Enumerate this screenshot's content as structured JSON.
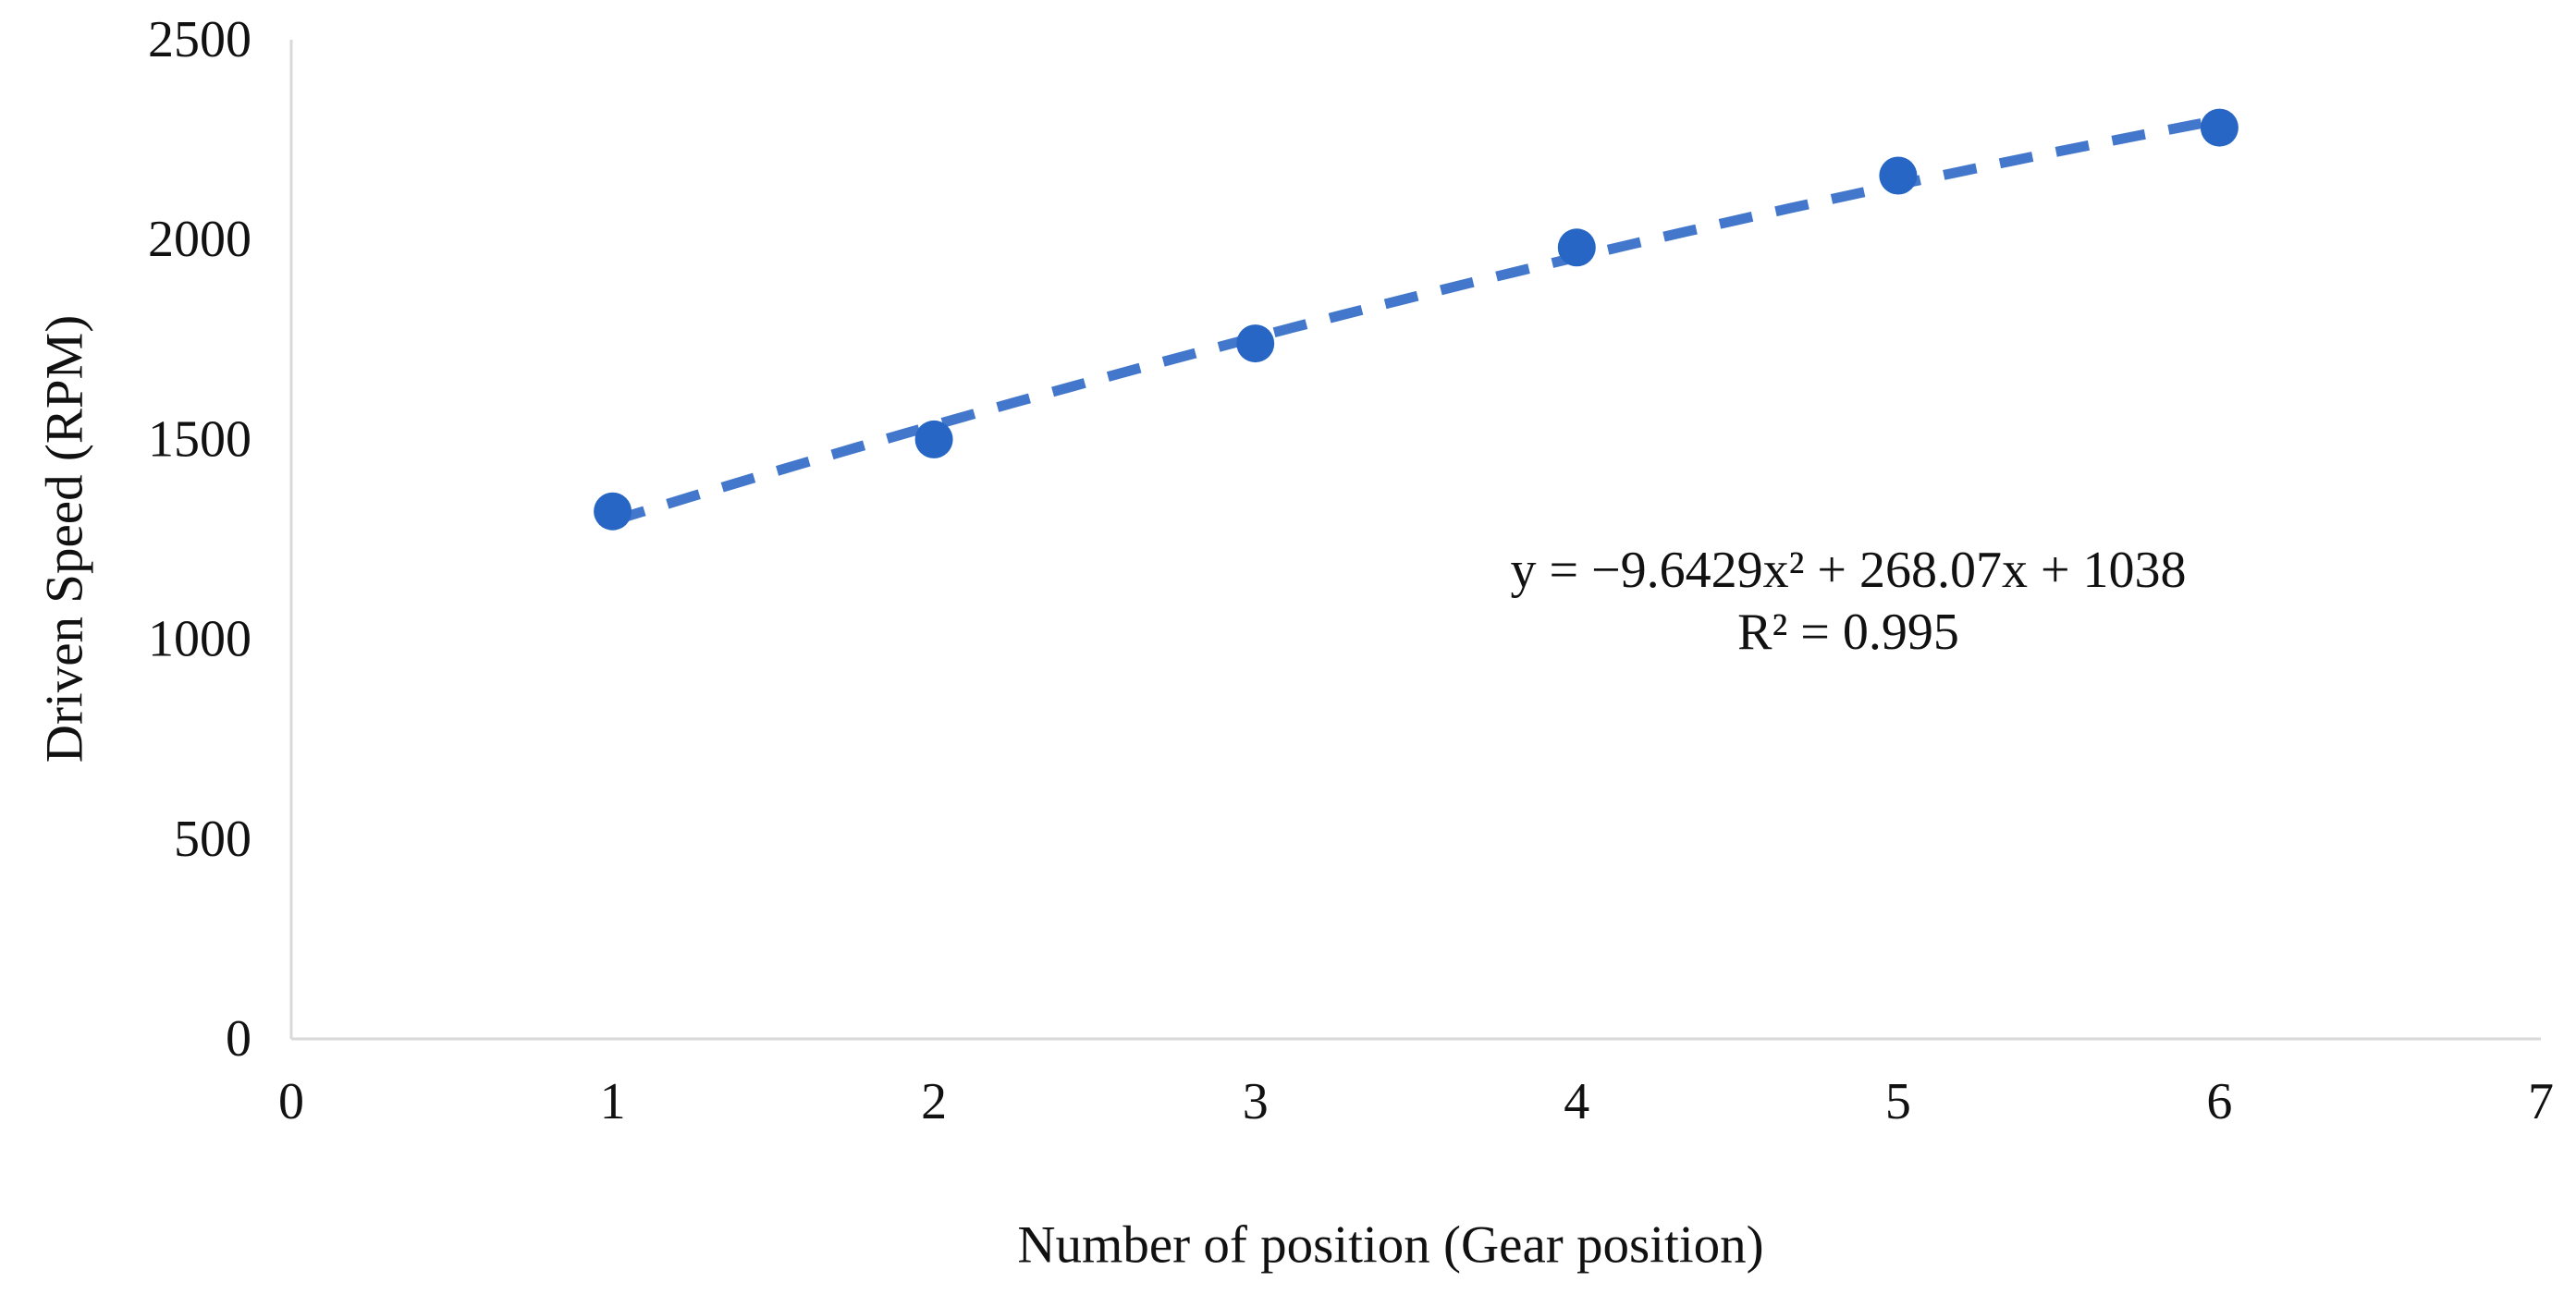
{
  "figure": {
    "background_color": "#ffffff",
    "title": ""
  },
  "chart_data": {
    "type": "scatter",
    "title": "",
    "xlabel": "Number of position (Gear position)",
    "ylabel": "Driven Speed (RPM)",
    "x": [
      1,
      2,
      3,
      4,
      5,
      6
    ],
    "y": [
      1320,
      1500,
      1740,
      1980,
      2160,
      2280
    ],
    "xlim": [
      0,
      7
    ],
    "ylim": [
      0,
      2500
    ],
    "x_ticks": [
      0,
      1,
      2,
      3,
      4,
      5,
      6,
      7
    ],
    "y_ticks": [
      0,
      500,
      1000,
      1500,
      2000,
      2500
    ],
    "grid": false,
    "legend": "none",
    "marker_shape": "circle",
    "trendline": {
      "kind": "quadratic",
      "a": -9.6429,
      "b": 268.07,
      "c": 1038,
      "x_range": [
        1,
        6
      ],
      "style": "dashed",
      "equation_label": "y = −9.6429x² + 268.07x + 1038",
      "r_squared_label": "R² = 0.995"
    },
    "colors": {
      "marker": "#2766C4",
      "trendline": "#4377CC",
      "axis_line": "#D9D9D9",
      "text": "#111111"
    }
  }
}
